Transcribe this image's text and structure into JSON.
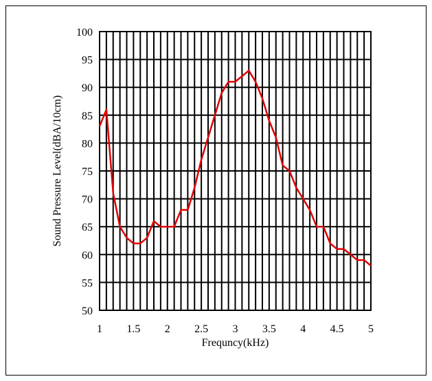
{
  "chart_data": {
    "type": "line",
    "title": "",
    "xlabel": "Frequncy(kHz)",
    "ylabel": "Sound Pressure Level(dBA/10cm)",
    "xlim": [
      1,
      5
    ],
    "ylim": [
      50,
      100
    ],
    "grid": true,
    "x_ticks": [
      "1",
      "1.5",
      "2",
      "2.5",
      "3",
      "3.5",
      "4",
      "4.5",
      "5"
    ],
    "y_ticks": [
      "50",
      "55",
      "60",
      "65",
      "70",
      "75",
      "80",
      "85",
      "90",
      "95",
      "100"
    ],
    "series": [
      {
        "color": "#e00000",
        "x": [
          1.0,
          1.1,
          1.2,
          1.3,
          1.4,
          1.5,
          1.6,
          1.7,
          1.8,
          1.9,
          2.0,
          2.1,
          2.2,
          2.3,
          2.4,
          2.5,
          2.6,
          2.7,
          2.8,
          2.9,
          3.0,
          3.1,
          3.2,
          3.3,
          3.4,
          3.5,
          3.6,
          3.7,
          3.8,
          3.9,
          4.0,
          4.1,
          4.2,
          4.3,
          4.4,
          4.5,
          4.6,
          4.7,
          4.8,
          4.9,
          5.0
        ],
        "y": [
          83,
          86,
          71,
          65,
          63,
          62,
          62,
          63,
          66,
          65,
          65,
          65,
          68,
          68,
          72,
          77,
          81,
          85,
          89,
          91,
          91,
          92,
          93,
          91,
          88,
          84,
          81,
          76,
          75,
          72,
          70,
          68,
          65,
          65,
          62,
          61,
          61,
          60,
          59,
          59,
          58
        ]
      }
    ]
  }
}
